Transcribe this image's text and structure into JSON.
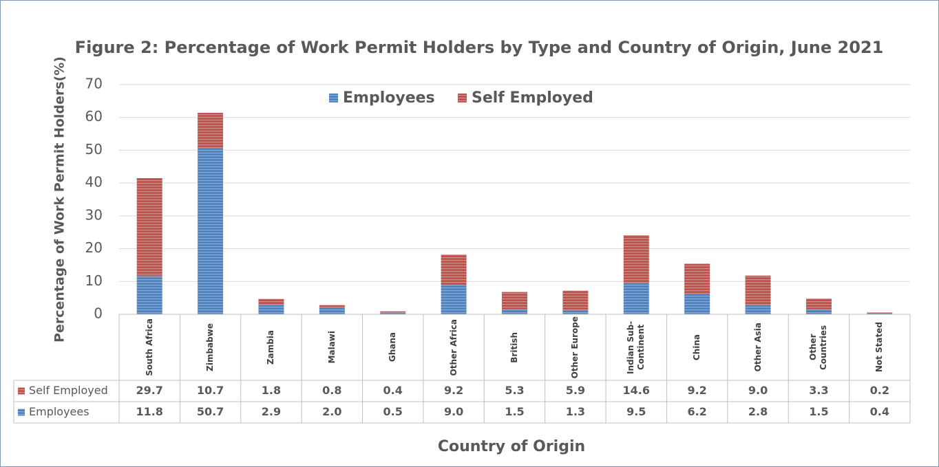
{
  "chart_data": {
    "type": "stacked_bar",
    "title": "Figure 2: Percentage of Work Permit Holders by Type and Country of Origin, June 2021",
    "y_label": "Percentage of Work Permit Holders(%)",
    "x_label": "Country of Origin",
    "categories": [
      "South Africa",
      "Zimbabwe",
      "Zambia",
      "Malawi",
      "Ghana",
      "Other Africa",
      "British",
      "Other Europe",
      "Indian Sub-Continent",
      "China",
      "Other Asia",
      "Other Countries",
      "Not Stated"
    ],
    "series": [
      {
        "name": "Employees",
        "color": "#4f81bd",
        "values": [
          11.8,
          50.7,
          2.9,
          2,
          0.5,
          9,
          1.5,
          1.3,
          9.5,
          6.2,
          2.8,
          1.5,
          0.4
        ],
        "value_labels": [
          "11.8",
          "50.7",
          "2.9",
          "2.0",
          "0.5",
          "9.0",
          "1.5",
          "1.3",
          "9.5",
          "6.2",
          "2.8",
          "1.5",
          "0.4"
        ]
      },
      {
        "name": "Self Employed",
        "color": "#c0504d",
        "values": [
          29.7,
          10.7,
          1.8,
          0.8,
          0.4,
          9.2,
          5.3,
          5.9,
          14.6,
          9.2,
          9,
          3.3,
          0.2
        ],
        "value_labels": [
          "29.7",
          "10.7",
          "1.8",
          "0.8",
          "0.4",
          "9.2",
          "5.3",
          "5.9",
          "14.6",
          "9.2",
          "9.0",
          "3.3",
          "0.2"
        ]
      }
    ],
    "ylim": [
      0,
      70
    ],
    "yticks": [
      0,
      10,
      20,
      30,
      40,
      50,
      60,
      70
    ],
    "grid": true,
    "legend": "top"
  }
}
